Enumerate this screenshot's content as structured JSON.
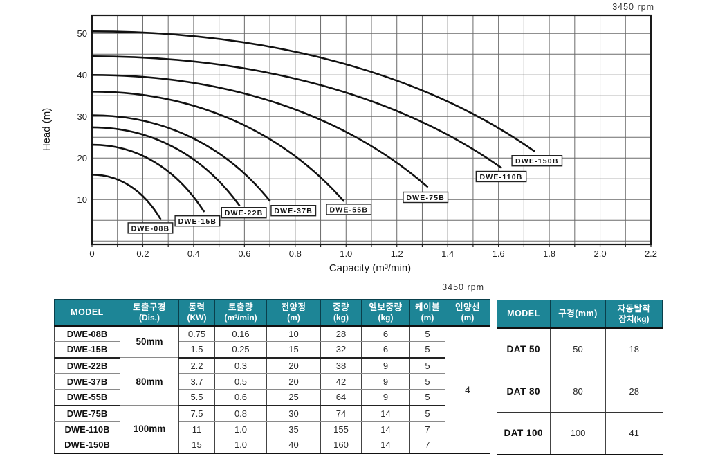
{
  "chart_data": {
    "type": "line",
    "rpm_label": "3450 rpm",
    "xlabel": "Capacity (m³/min)",
    "ylabel": "Head (m)",
    "xlim": [
      0,
      2.2
    ],
    "ylim": [
      0,
      55
    ],
    "x_grid_step": 0.1,
    "y_grid_step": 5,
    "x_ticks": [
      {
        "v": 0.0,
        "label": "0"
      },
      {
        "v": 0.2,
        "label": "0.2"
      },
      {
        "v": 0.4,
        "label": "0.4"
      },
      {
        "v": 0.6,
        "label": "0.6"
      },
      {
        "v": 0.8,
        "label": "0.8"
      },
      {
        "v": 1.0,
        "label": "1.0"
      },
      {
        "v": 1.2,
        "label": "1.2"
      },
      {
        "v": 1.4,
        "label": "1.4"
      },
      {
        "v": 1.6,
        "label": "1.6"
      },
      {
        "v": 1.8,
        "label": "1.8"
      },
      {
        "v": 2.0,
        "label": "2.0"
      },
      {
        "v": 2.2,
        "label": "2.2"
      }
    ],
    "y_ticks": [
      {
        "v": 10,
        "label": "10"
      },
      {
        "v": 20,
        "label": "20"
      },
      {
        "v": 30,
        "label": "30"
      },
      {
        "v": 40,
        "label": "40"
      },
      {
        "v": 50,
        "label": "50"
      }
    ],
    "series": [
      {
        "name": "DWE-08B",
        "shutoff_head": 16.0,
        "max_capacity": 0.27,
        "end_head": 5.3,
        "label_pos": [
          0.142,
          4.4
        ]
      },
      {
        "name": "DWE-15B",
        "shutoff_head": 23.2,
        "max_capacity": 0.44,
        "end_head": 7.2,
        "label_pos": [
          0.327,
          6.1
        ]
      },
      {
        "name": "DWE-22B",
        "shutoff_head": 27.4,
        "max_capacity": 0.58,
        "end_head": 8.6,
        "label_pos": [
          0.51,
          8.1
        ]
      },
      {
        "name": "DWE-37B",
        "shutoff_head": 30.3,
        "max_capacity": 0.7,
        "end_head": 9.7,
        "label_pos": [
          0.705,
          8.6
        ]
      },
      {
        "name": "DWE-55B",
        "shutoff_head": 36.0,
        "max_capacity": 0.99,
        "end_head": 9.7,
        "label_pos": [
          0.923,
          8.9
        ]
      },
      {
        "name": "DWE-75B",
        "shutoff_head": 40.0,
        "max_capacity": 1.32,
        "end_head": 13.1,
        "label_pos": [
          1.225,
          11.8
        ]
      },
      {
        "name": "DWE-110B",
        "shutoff_head": 44.5,
        "max_capacity": 1.61,
        "end_head": 17.7,
        "label_pos": [
          1.512,
          16.8
        ]
      },
      {
        "name": "DWE-150B",
        "shutoff_head": 50.5,
        "max_capacity": 1.74,
        "end_head": 21.7,
        "label_pos": [
          1.653,
          20.6
        ]
      }
    ],
    "colors": {
      "curve": "#111111",
      "grid": "#6b6b6b",
      "border": "#1a1a1a",
      "label_box": "#ffffff"
    }
  },
  "spec_table": {
    "rpm_label": "3450 rpm",
    "headers": [
      {
        "line1": "MODEL",
        "line2": ""
      },
      {
        "line1": "토출구경",
        "line2": "(Dis.)"
      },
      {
        "line1": "동력",
        "line2": "(KW)"
      },
      {
        "line1": "토출량",
        "line2": "(m³/min)"
      },
      {
        "line1": "전양정",
        "line2": "(m)"
      },
      {
        "line1": "중량",
        "line2": "(kg)"
      },
      {
        "line1": "엘보중량",
        "line2": "(kg)"
      },
      {
        "line1": "케이블",
        "line2": "(m)"
      },
      {
        "line1": "인양선",
        "line2": "(m)"
      }
    ],
    "rows": [
      {
        "model": "DWE-08B",
        "dis": "50mm",
        "kw": "0.75",
        "flow": "0.16",
        "head": "10",
        "weight": "28",
        "elbow": "6",
        "cable": "5"
      },
      {
        "model": "DWE-15B",
        "dis": "",
        "kw": "1.5",
        "flow": "0.25",
        "head": "15",
        "weight": "32",
        "elbow": "6",
        "cable": "5"
      },
      {
        "model": "DWE-22B",
        "dis": "80mm",
        "kw": "2.2",
        "flow": "0.3",
        "head": "20",
        "weight": "38",
        "elbow": "9",
        "cable": "5"
      },
      {
        "model": "DWE-37B",
        "dis": "",
        "kw": "3.7",
        "flow": "0.5",
        "head": "20",
        "weight": "42",
        "elbow": "9",
        "cable": "5"
      },
      {
        "model": "DWE-55B",
        "dis": "",
        "kw": "5.5",
        "flow": "0.6",
        "head": "25",
        "weight": "64",
        "elbow": "9",
        "cable": "5"
      },
      {
        "model": "DWE-75B",
        "dis": "100mm",
        "kw": "7.5",
        "flow": "0.8",
        "head": "30",
        "weight": "74",
        "elbow": "14",
        "cable": "5"
      },
      {
        "model": "DWE-110B",
        "dis": "",
        "kw": "11",
        "flow": "1.0",
        "head": "35",
        "weight": "155",
        "elbow": "14",
        "cable": "7"
      },
      {
        "model": "DWE-150B",
        "dis": "",
        "kw": "15",
        "flow": "1.0",
        "head": "40",
        "weight": "160",
        "elbow": "14",
        "cable": "7"
      }
    ],
    "rope_value": "4"
  },
  "dat_table": {
    "headers": [
      {
        "line1": "MODEL",
        "line2": ""
      },
      {
        "line1": "구경(mm)",
        "line2": ""
      },
      {
        "line1": "자동탈착",
        "line2": "장치(kg)"
      }
    ],
    "rows": [
      {
        "model": "DAT 50",
        "bore": "50",
        "weight": "18"
      },
      {
        "model": "DAT 80",
        "bore": "80",
        "weight": "28"
      },
      {
        "model": "DAT 100",
        "bore": "100",
        "weight": "41"
      }
    ]
  },
  "colors": {
    "header_teal": "#1d8596"
  }
}
